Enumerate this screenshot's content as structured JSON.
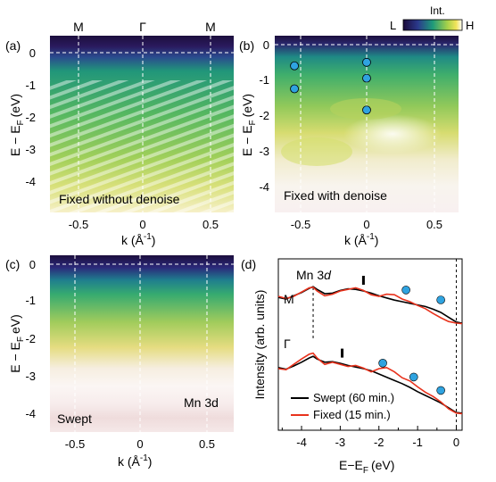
{
  "colorbar": {
    "label": "Int.",
    "low": "L",
    "high": "H"
  },
  "panels": [
    {
      "tag": "(a)",
      "ylabel_main": "E − E",
      "ylabel_sub": "F",
      "ylabel_unit": "(eV)",
      "xlabel": "k (Å",
      "xlabel_exp": "-1",
      "yticks": [
        "0",
        "-1",
        "-2",
        "-3",
        "-4"
      ],
      "xticks": [
        "-0.5",
        "0",
        "0.5"
      ],
      "top_labels": [
        "M",
        "Γ",
        "M"
      ],
      "inset_text": "Fixed without denoise"
    },
    {
      "tag": "(b)",
      "ylabel_main": "E − E",
      "ylabel_sub": "F",
      "ylabel_unit": "(eV)",
      "xlabel": "k (Å",
      "xlabel_exp": "-1",
      "yticks": [
        "0",
        "-1",
        "-2",
        "-3",
        "-4"
      ],
      "xticks": [
        "-0.5",
        "0",
        "0.5"
      ],
      "inset_text": "Fixed with denoise"
    },
    {
      "tag": "(c)",
      "ylabel_main": "E − E",
      "ylabel_sub": "F",
      "ylabel_unit": "eV)",
      "xlabel": "k (Å",
      "xlabel_exp": "-1",
      "yticks": [
        "0",
        "-1",
        "-2",
        "-3",
        "-4"
      ],
      "xticks": [
        "-0.5",
        "0",
        "0.5"
      ],
      "inset_text": "Swept",
      "inset_text2": "Mn 3d"
    }
  ],
  "chart_data": {
    "type": "line",
    "tag": "(d)",
    "xlabel": "E−E",
    "xlabel_sub": "F",
    "xlabel_unit": "(eV)",
    "ylabel": "Intensity (arb. units)",
    "xlim": [
      -4.6,
      0.15
    ],
    "xticks": [
      "-4",
      "-3",
      "-2",
      "-1",
      "0"
    ],
    "annotation_title": "Mn 3",
    "annotation_title_italic": "d",
    "curve_labels": [
      "M",
      "Γ"
    ],
    "series": [
      {
        "name": "Swept (60 min.)",
        "color": "#000000",
        "groups": [
          {
            "label": "M",
            "x": [
              -4.6,
              -4.4,
              -4.2,
              -4.0,
              -3.8,
              -3.7,
              -3.6,
              -3.4,
              -3.2,
              -3.0,
              -2.8,
              -2.6,
              -2.4,
              -2.2,
              -2.0,
              -1.8,
              -1.6,
              -1.4,
              -1.2,
              -1.0,
              -0.8,
              -0.6,
              -0.4,
              -0.2,
              0.0,
              0.15
            ],
            "y": [
              0.18,
              0.15,
              0.21,
              0.27,
              0.35,
              0.38,
              0.33,
              0.25,
              0.26,
              0.31,
              0.34,
              0.33,
              0.3,
              0.26,
              0.21,
              0.17,
              0.13,
              0.1,
              0.07,
              0.04,
              0.01,
              -0.04,
              -0.1,
              -0.19,
              -0.28,
              -0.3
            ]
          },
          {
            "label": "Γ",
            "x": [
              -4.6,
              -4.4,
              -4.2,
              -4.0,
              -3.8,
              -3.7,
              -3.6,
              -3.4,
              -3.2,
              -3.0,
              -2.8,
              -2.6,
              -2.4,
              -2.2,
              -2.0,
              -1.8,
              -1.6,
              -1.4,
              -1.2,
              -1.0,
              -0.8,
              -0.6,
              -0.4,
              -0.2,
              0.0,
              0.15
            ],
            "y": [
              -0.28,
              -0.31,
              -0.25,
              -0.18,
              -0.1,
              -0.07,
              -0.12,
              -0.18,
              -0.17,
              -0.2,
              -0.24,
              -0.27,
              -0.3,
              -0.34,
              -0.4,
              -0.46,
              -0.52,
              -0.58,
              -0.65,
              -0.73,
              -0.8,
              -0.87,
              -0.94,
              -1.03,
              -1.12,
              -1.13
            ]
          }
        ]
      },
      {
        "name": "Fixed (15 min.)",
        "color": "#e8321c",
        "groups": [
          {
            "label": "M",
            "x": [
              -4.6,
              -4.4,
              -4.2,
              -4.0,
              -3.8,
              -3.7,
              -3.6,
              -3.4,
              -3.2,
              -3.0,
              -2.8,
              -2.6,
              -2.4,
              -2.2,
              -2.0,
              -1.8,
              -1.6,
              -1.4,
              -1.2,
              -1.0,
              -0.8,
              -0.6,
              -0.4,
              -0.2,
              0.0,
              0.15
            ],
            "y": [
              0.2,
              0.16,
              0.2,
              0.28,
              0.36,
              0.37,
              0.3,
              0.21,
              0.24,
              0.3,
              0.33,
              0.36,
              0.31,
              0.23,
              0.2,
              0.24,
              0.23,
              0.15,
              0.1,
              0.03,
              -0.03,
              -0.12,
              -0.2,
              -0.27,
              -0.3,
              -0.31
            ]
          },
          {
            "label": "Γ",
            "x": [
              -4.6,
              -4.4,
              -4.2,
              -4.0,
              -3.8,
              -3.7,
              -3.6,
              -3.4,
              -3.2,
              -3.0,
              -2.8,
              -2.6,
              -2.4,
              -2.2,
              -2.0,
              -1.8,
              -1.6,
              -1.4,
              -1.2,
              -1.0,
              -0.8,
              -0.6,
              -0.4,
              -0.2,
              0.0,
              0.15
            ],
            "y": [
              -0.3,
              -0.32,
              -0.22,
              -0.12,
              -0.03,
              -0.01,
              -0.1,
              -0.22,
              -0.18,
              -0.22,
              -0.26,
              -0.24,
              -0.29,
              -0.36,
              -0.3,
              -0.28,
              -0.36,
              -0.47,
              -0.53,
              -0.64,
              -0.74,
              -0.82,
              -0.92,
              -1.05,
              -1.13,
              -1.14
            ]
          }
        ]
      }
    ],
    "markers": [
      {
        "type": "dashed-line",
        "x": -3.7
      },
      {
        "type": "dashed-line",
        "x": 0.0
      },
      {
        "type": "tick",
        "x": -2.4,
        "group": "M"
      },
      {
        "type": "tick",
        "x": -2.95,
        "group": "Γ"
      },
      {
        "type": "dot",
        "x": -1.3,
        "group": "M",
        "color": "#2fa3e0"
      },
      {
        "type": "dot",
        "x": -0.4,
        "group": "M",
        "color": "#2fa3e0"
      },
      {
        "type": "dot",
        "x": -1.9,
        "group": "Γ",
        "color": "#2fa3e0"
      },
      {
        "type": "dot",
        "x": -1.1,
        "group": "Γ",
        "color": "#2fa3e0"
      },
      {
        "type": "dot",
        "x": -0.4,
        "group": "Γ",
        "color": "#2fa3e0"
      }
    ]
  },
  "band_dots_b": [
    {
      "k": -0.55,
      "e": -0.6
    },
    {
      "k": -0.55,
      "e": -1.25
    },
    {
      "k": 0.0,
      "e": -0.5
    },
    {
      "k": 0.0,
      "e": -0.95
    },
    {
      "k": 0.0,
      "e": -1.85
    }
  ],
  "colors": {
    "dot": "#2fa3e0",
    "swept": "#000000",
    "fixed": "#e8321c"
  }
}
